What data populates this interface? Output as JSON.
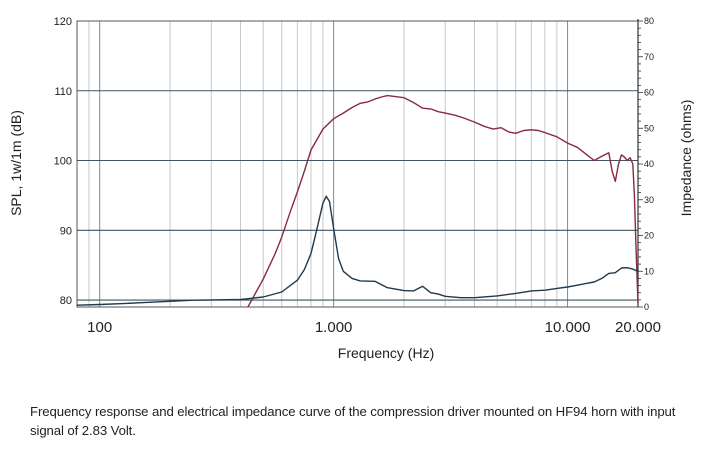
{
  "chart_data": {
    "type": "line",
    "xlabel": "Frequency (Hz)",
    "ylabel_left": "SPL, 1w/1m (dB)",
    "ylabel_right": "Impedance (ohms)",
    "x_scale": "log",
    "xlim": [
      80,
      20000
    ],
    "ylim_left": [
      79,
      120
    ],
    "ylim_right": [
      0,
      80
    ],
    "x_tick_labels": [
      {
        "value": 100,
        "label": "100"
      },
      {
        "value": 1000,
        "label": "1.000"
      },
      {
        "value": 10000,
        "label": "10.000"
      },
      {
        "value": 20000,
        "label": "20.000"
      }
    ],
    "y_left_tick_labels": [
      {
        "value": 80,
        "label": "80"
      },
      {
        "value": 90,
        "label": "90"
      },
      {
        "value": 100,
        "label": "100"
      },
      {
        "value": 110,
        "label": "110"
      },
      {
        "value": 120,
        "label": "120"
      }
    ],
    "y_right_tick_labels": [
      "0",
      "10",
      "20",
      "30",
      "40",
      "50",
      "60",
      "70",
      "80"
    ],
    "grid": true,
    "series": [
      {
        "axis": "left",
        "color": "#8a2a3e",
        "x": [
          430,
          500,
          560,
          600,
          650,
          700,
          750,
          800,
          900,
          1000,
          1100,
          1200,
          1300,
          1400,
          1500,
          1600,
          1700,
          1800,
          2000,
          2200,
          2400,
          2600,
          2800,
          3000,
          3300,
          3600,
          4000,
          4400,
          4800,
          5200,
          5600,
          6000,
          6500,
          7000,
          7500,
          8000,
          9000,
          10000,
          11000,
          12000,
          13000,
          14000,
          15000,
          15500,
          16000,
          16500,
          17000,
          17500,
          18000,
          18500,
          19000,
          19300,
          19600,
          20000
        ],
        "y": [
          79.0,
          83.0,
          86.5,
          89.0,
          92.5,
          95.5,
          98.5,
          101.5,
          104.5,
          106.0,
          106.8,
          107.6,
          108.2,
          108.4,
          108.8,
          109.1,
          109.3,
          109.2,
          109.0,
          108.3,
          107.5,
          107.4,
          107.0,
          106.8,
          106.5,
          106.1,
          105.5,
          104.9,
          104.5,
          104.7,
          104.1,
          103.9,
          104.3,
          104.4,
          104.3,
          104.0,
          103.4,
          102.5,
          101.9,
          100.9,
          100.0,
          100.6,
          101.1,
          98.5,
          97.0,
          99.5,
          100.8,
          100.5,
          100.0,
          100.4,
          99.5,
          95.0,
          88.0,
          79.5
        ]
      },
      {
        "axis": "right",
        "color": "#1f3a4d",
        "x": [
          80,
          100,
          130,
          150,
          200,
          250,
          300,
          400,
          500,
          600,
          700,
          750,
          800,
          850,
          900,
          930,
          960,
          1000,
          1050,
          1100,
          1200,
          1300,
          1500,
          1700,
          2000,
          2200,
          2400,
          2600,
          2800,
          3000,
          3500,
          4000,
          5000,
          6000,
          7000,
          8000,
          9000,
          10000,
          11000,
          12000,
          13000,
          14000,
          15000,
          16000,
          17000,
          18000,
          19000,
          20000
        ],
        "y": [
          0.5,
          0.7,
          1.0,
          1.2,
          1.6,
          1.9,
          2.0,
          2.1,
          2.8,
          4.2,
          7.5,
          10.5,
          15.0,
          22.0,
          29.0,
          31.0,
          29.5,
          22.0,
          13.5,
          10.0,
          8.0,
          7.3,
          7.2,
          5.4,
          4.6,
          4.5,
          5.8,
          4.0,
          3.6,
          3.0,
          2.6,
          2.6,
          3.1,
          3.8,
          4.5,
          4.7,
          5.2,
          5.6,
          6.1,
          6.6,
          7.0,
          8.0,
          9.4,
          9.6,
          10.9,
          11.0,
          10.6,
          10.0
        ]
      }
    ]
  },
  "caption": "Frequency response and electrical impedance curve of the compression driver mounted on HF94 horn with input signal of 2.83 Volt."
}
